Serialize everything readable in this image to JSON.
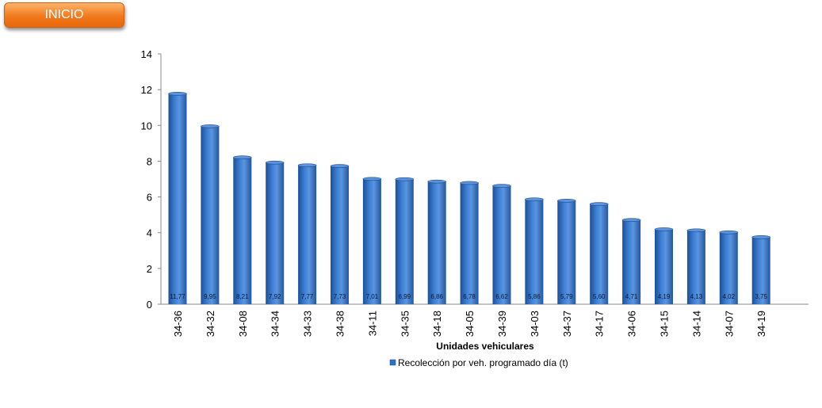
{
  "nav": {
    "inicio_label": "INICIO"
  },
  "colors": {
    "bar": "#2f6fc4",
    "bar_dark": "#1d4f95",
    "bar_light": "#6aa0e6",
    "button": "#f07a1c"
  },
  "chart_data": {
    "type": "bar",
    "title": "",
    "xlabel": "Unidades vehiculares",
    "ylabel": "",
    "ylim": [
      0,
      14
    ],
    "yticks": [
      0,
      2,
      4,
      6,
      8,
      10,
      12,
      14
    ],
    "grid": false,
    "legend_position": "bottom",
    "categories": [
      "34-36",
      "34-32",
      "34-08",
      "34-34",
      "34-33",
      "34-38",
      "34-11",
      "34-35",
      "34-18",
      "34-05",
      "34-39",
      "34-03",
      "34-37",
      "34-17",
      "34-06",
      "34-15",
      "34-14",
      "34-07",
      "34-19"
    ],
    "series": [
      {
        "name": "Recolección por veh. programado día (t)",
        "values": [
          11.77,
          9.95,
          8.21,
          7.92,
          7.77,
          7.73,
          7.01,
          6.99,
          6.86,
          6.78,
          6.62,
          5.86,
          5.79,
          5.6,
          4.71,
          4.19,
          4.13,
          4.02,
          3.75
        ],
        "data_labels": [
          "11,77",
          "9,95",
          "8,21",
          "7,92",
          "7,77",
          "7,73",
          "7,01",
          "6,99",
          "6,86",
          "6,78",
          "6,62",
          "5,86",
          "5,79",
          "5,60",
          "4,71",
          "4,19",
          "4,13",
          "4,02",
          "3,75"
        ]
      }
    ]
  }
}
